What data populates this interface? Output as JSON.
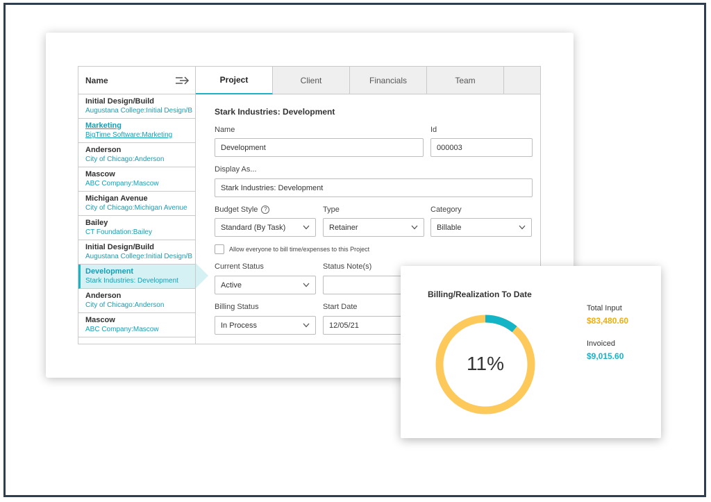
{
  "colors": {
    "accent": "#1cb4c4",
    "link": "#13a0b5",
    "total_input": "#f0ae0f",
    "invoiced": "#13b4c6",
    "donut_track": "#fdc95a",
    "active_row": "#d5f1f4"
  },
  "list": {
    "header": "Name",
    "collapse_icon": "collapse-arrow-icon",
    "items": [
      {
        "title": "Initial Design/Build",
        "sub": "Augustana College:Initial Design/B"
      },
      {
        "title": "Marketing",
        "sub": "BigTime Software:Marketing"
      },
      {
        "title": "Anderson",
        "sub": "City of Chicago:Anderson"
      },
      {
        "title": "Mascow",
        "sub": "ABC Company:Mascow"
      },
      {
        "title": "Michigan Avenue",
        "sub": "City of Chicago:Michigan Avenue"
      },
      {
        "title": "Bailey",
        "sub": "CT Foundation:Bailey"
      },
      {
        "title": "Initial Design/Build",
        "sub": "Augustana College:Initial Design/B"
      },
      {
        "title": "Development",
        "sub": "Stark Industries: Development"
      },
      {
        "title": "Anderson",
        "sub": "City of Chicago:Anderson"
      },
      {
        "title": "Mascow",
        "sub": "ABC Company:Mascow"
      }
    ]
  },
  "tabs": [
    "Project",
    "Client",
    "Financials",
    "Team"
  ],
  "form": {
    "title": "Stark Industries: Development",
    "name_label": "Name",
    "name_value": "Development",
    "id_label": "Id",
    "id_value": "000003",
    "display_label": "Display As...",
    "display_value": "Stark Industries: Development",
    "budget_label": "Budget Style",
    "budget_value": "Standard (By Task)",
    "type_label": "Type",
    "type_value": "Retainer",
    "category_label": "Category",
    "category_value": "Billable",
    "allow_label": "Allow everyone to bill time/expenses to this Project",
    "status_label": "Current Status",
    "status_value": "Active",
    "note_label": "Status Note(s)",
    "note_value": "",
    "billing_label": "Billing Status",
    "billing_value": "In Process",
    "start_label": "Start Date",
    "start_value": "12/05/21"
  },
  "billing": {
    "title": "Billing/Realization To Date",
    "percent_label": "11%",
    "percent": 0.11,
    "total_input_label": "Total Input",
    "total_input_value": "$83,480.60",
    "invoiced_label": "Invoiced",
    "invoiced_value": "$9,015.60"
  }
}
